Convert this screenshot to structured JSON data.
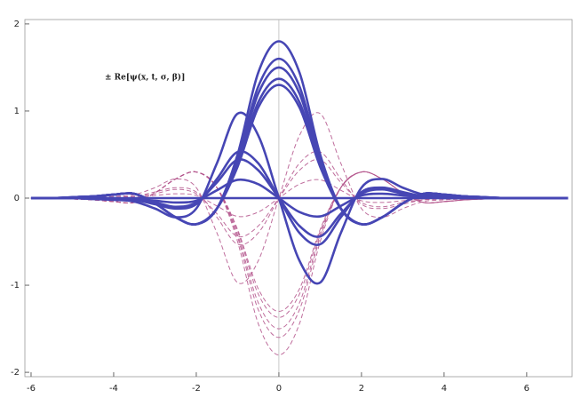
{
  "chart_data": {
    "type": "line",
    "annotation": "± Re[ψ(x, t, σ, β)]",
    "x": [
      -6,
      -5.5,
      -5,
      -4.5,
      -4,
      -3.5,
      -3,
      -2.5,
      -2,
      -1.5,
      -1,
      -0.5,
      0,
      0.5,
      1,
      1.5,
      2,
      2.5,
      3,
      3.5,
      4,
      4.5,
      5,
      5.5,
      6,
      6.5,
      7
    ],
    "xlim": [
      -6.15,
      7.1
    ],
    "ylim": [
      -2.05,
      2.05
    ],
    "xticks": [
      -6,
      -4,
      -2,
      0,
      2,
      4,
      6
    ],
    "yticks": [
      -2,
      -1,
      0,
      1,
      2
    ],
    "series": [
      {
        "color": "#4646b4",
        "style": "solid",
        "values": [
          0,
          0,
          0.01,
          0.02,
          0.04,
          0.05,
          -0.06,
          -0.22,
          -0.3,
          -0.12,
          0.5,
          1.44,
          1.8,
          1.44,
          0.5,
          -0.12,
          -0.3,
          -0.22,
          -0.06,
          0.05,
          0.04,
          0.02,
          0.01,
          0,
          0,
          0,
          0
        ]
      },
      {
        "color": "#4646b4",
        "style": "solid",
        "values": [
          0,
          0,
          0.01,
          0.02,
          0.04,
          0.05,
          -0.06,
          -0.22,
          -0.3,
          -0.12,
          0.45,
          1.28,
          1.6,
          1.28,
          0.45,
          -0.12,
          -0.3,
          -0.22,
          -0.06,
          0.05,
          0.04,
          0.02,
          0.01,
          0,
          0,
          0,
          0
        ]
      },
      {
        "color": "#4646b4",
        "style": "solid",
        "values": [
          0,
          0,
          0.01,
          0.02,
          0.04,
          0.05,
          -0.06,
          -0.22,
          -0.3,
          -0.12,
          0.42,
          1.2,
          1.5,
          1.2,
          0.42,
          -0.12,
          -0.3,
          -0.22,
          -0.06,
          0.05,
          0.04,
          0.02,
          0.01,
          0,
          0,
          0,
          0
        ]
      },
      {
        "color": "#4646b4",
        "style": "solid",
        "values": [
          0,
          0,
          0.01,
          0.02,
          0.04,
          0.05,
          -0.06,
          -0.22,
          -0.3,
          -0.12,
          0.38,
          1.1,
          1.37,
          1.1,
          0.38,
          -0.12,
          -0.3,
          -0.22,
          -0.06,
          0.05,
          0.04,
          0.02,
          0.01,
          0,
          0,
          0,
          0
        ]
      },
      {
        "color": "#4646b4",
        "style": "solid",
        "values": [
          0,
          0,
          0.01,
          0.02,
          0.04,
          0.05,
          -0.06,
          -0.22,
          -0.3,
          -0.12,
          0.36,
          1.04,
          1.3,
          1.04,
          0.36,
          -0.12,
          -0.3,
          -0.22,
          -0.06,
          0.05,
          0.04,
          0.02,
          0.01,
          0,
          0,
          0,
          0
        ]
      },
      {
        "color": "#4646b4",
        "style": "solid",
        "values": [
          0,
          0,
          0,
          -0.01,
          -0.02,
          -0.04,
          -0.12,
          -0.22,
          -0.12,
          0.4,
          0.97,
          0.72,
          0,
          -0.72,
          -0.97,
          -0.4,
          0.12,
          0.22,
          0.12,
          0.04,
          0.02,
          0.01,
          0,
          0,
          0,
          0,
          0
        ]
      },
      {
        "color": "#4646b4",
        "style": "solid",
        "values": [
          0,
          0,
          0,
          -0.01,
          -0.01,
          -0.02,
          -0.07,
          -0.12,
          -0.07,
          0.22,
          0.53,
          0.4,
          0,
          -0.4,
          -0.53,
          -0.22,
          0.07,
          0.12,
          0.07,
          0.02,
          0.01,
          0.01,
          0,
          0,
          0,
          0,
          0
        ]
      },
      {
        "color": "#4646b4",
        "style": "solid",
        "values": [
          0,
          0,
          0,
          0,
          -0.01,
          -0.02,
          -0.05,
          -0.1,
          -0.05,
          0.18,
          0.44,
          0.32,
          0,
          -0.32,
          -0.44,
          -0.18,
          0.05,
          0.1,
          0.05,
          0.02,
          0.01,
          0,
          0,
          0,
          0,
          0,
          0
        ]
      },
      {
        "color": "#4646b4",
        "style": "solid",
        "values": [
          0,
          0,
          0,
          0,
          0,
          -0.01,
          -0.03,
          -0.05,
          -0.03,
          0.09,
          0.21,
          0.16,
          0,
          -0.16,
          -0.21,
          -0.09,
          0.03,
          0.05,
          0.03,
          0.01,
          0,
          0,
          0,
          0,
          0,
          0,
          0
        ]
      },
      {
        "color": "#4646b4",
        "style": "solid",
        "values": [
          0,
          0,
          0,
          0,
          0,
          0,
          0,
          0,
          0,
          0,
          0,
          0,
          0,
          0,
          0,
          0,
          0,
          0,
          0,
          0,
          0,
          0,
          0,
          0,
          0,
          0,
          0
        ]
      },
      {
        "color": "#b4558c",
        "style": "dashed",
        "values": [
          0,
          0,
          -0.01,
          -0.02,
          -0.04,
          -0.05,
          0.06,
          0.22,
          0.3,
          0.12,
          -0.5,
          -1.44,
          -1.8,
          -1.44,
          -0.5,
          0.12,
          0.3,
          0.22,
          0.06,
          -0.05,
          -0.04,
          -0.02,
          -0.01,
          0,
          0,
          0,
          0
        ]
      },
      {
        "color": "#b4558c",
        "style": "dashed",
        "values": [
          0,
          0,
          -0.01,
          -0.02,
          -0.04,
          -0.05,
          0.06,
          0.22,
          0.3,
          0.12,
          -0.45,
          -1.28,
          -1.6,
          -1.28,
          -0.45,
          0.12,
          0.3,
          0.22,
          0.06,
          -0.05,
          -0.04,
          -0.02,
          -0.01,
          0,
          0,
          0,
          0
        ]
      },
      {
        "color": "#b4558c",
        "style": "dashed",
        "values": [
          0,
          0,
          -0.01,
          -0.02,
          -0.04,
          -0.05,
          0.06,
          0.22,
          0.3,
          0.12,
          -0.42,
          -1.2,
          -1.5,
          -1.2,
          -0.42,
          0.12,
          0.3,
          0.22,
          0.06,
          -0.05,
          -0.04,
          -0.02,
          -0.01,
          0,
          0,
          0,
          0
        ]
      },
      {
        "color": "#b4558c",
        "style": "dashed",
        "values": [
          0,
          0,
          -0.01,
          -0.02,
          -0.04,
          -0.05,
          0.06,
          0.22,
          0.3,
          0.12,
          -0.38,
          -1.1,
          -1.37,
          -1.1,
          -0.38,
          0.12,
          0.3,
          0.22,
          0.06,
          -0.05,
          -0.04,
          -0.02,
          -0.01,
          0,
          0,
          0,
          0
        ]
      },
      {
        "color": "#b4558c",
        "style": "dashed",
        "values": [
          0,
          0,
          -0.01,
          -0.02,
          -0.04,
          -0.05,
          0.06,
          0.22,
          0.3,
          0.12,
          -0.36,
          -1.04,
          -1.3,
          -1.04,
          -0.36,
          0.12,
          0.3,
          0.22,
          0.06,
          -0.05,
          -0.04,
          -0.02,
          -0.01,
          0,
          0,
          0,
          0
        ]
      },
      {
        "color": "#b4558c",
        "style": "dashed",
        "values": [
          0,
          0,
          0,
          0.01,
          0.02,
          0.04,
          0.12,
          0.22,
          0.12,
          -0.4,
          -0.97,
          -0.72,
          0,
          0.72,
          0.97,
          0.4,
          -0.12,
          -0.22,
          -0.12,
          -0.04,
          -0.02,
          -0.01,
          0,
          0,
          0,
          0,
          0
        ]
      },
      {
        "color": "#b4558c",
        "style": "dashed",
        "values": [
          0,
          0,
          0,
          0.01,
          0.01,
          0.02,
          0.07,
          0.12,
          0.07,
          -0.22,
          -0.53,
          -0.4,
          0,
          0.4,
          0.53,
          0.22,
          -0.07,
          -0.12,
          -0.07,
          -0.02,
          -0.01,
          -0.01,
          0,
          0,
          0,
          0,
          0
        ]
      },
      {
        "color": "#b4558c",
        "style": "dashed",
        "values": [
          0,
          0,
          0,
          0,
          0.01,
          0.02,
          0.05,
          0.1,
          0.05,
          -0.18,
          -0.44,
          -0.32,
          0,
          0.32,
          0.44,
          0.18,
          -0.05,
          -0.1,
          -0.05,
          -0.02,
          -0.01,
          0,
          0,
          0,
          0,
          0,
          0
        ]
      },
      {
        "color": "#b4558c",
        "style": "dashed",
        "values": [
          0,
          0,
          0,
          0,
          0,
          0.01,
          0.03,
          0.05,
          0.03,
          -0.09,
          -0.21,
          -0.16,
          0,
          0.16,
          0.21,
          0.09,
          -0.03,
          -0.05,
          -0.03,
          -0.01,
          0,
          0,
          0,
          0,
          0,
          0,
          0
        ]
      }
    ]
  }
}
